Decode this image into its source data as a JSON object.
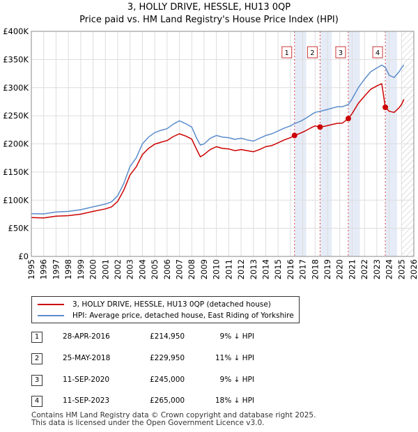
{
  "title_line1": "3, HOLLY DRIVE, HESSLE, HU13 0QP",
  "title_line2": "Price paid vs. HM Land Registry's House Price Index (HPI)",
  "chart_data": {
    "type": "line",
    "ylim": [
      0,
      400000
    ],
    "xlim": [
      1995,
      2026
    ],
    "y_ticks": [
      {
        "value": 0,
        "label": "£0"
      },
      {
        "value": 50000,
        "label": "£50K"
      },
      {
        "value": 100000,
        "label": "£100K"
      },
      {
        "value": 150000,
        "label": "£150K"
      },
      {
        "value": 200000,
        "label": "£200K"
      },
      {
        "value": 250000,
        "label": "£250K"
      },
      {
        "value": 300000,
        "label": "£300K"
      },
      {
        "value": 350000,
        "label": "£350K"
      },
      {
        "value": 400000,
        "label": "£400K"
      }
    ],
    "x_ticks": [
      "1995",
      "1996",
      "1997",
      "1998",
      "1999",
      "2000",
      "2001",
      "2002",
      "2003",
      "2004",
      "2005",
      "2006",
      "2007",
      "2008",
      "2009",
      "2010",
      "2011",
      "2012",
      "2013",
      "2014",
      "2015",
      "2016",
      "2017",
      "2018",
      "2019",
      "2020",
      "2021",
      "2022",
      "2023",
      "2024",
      "2025",
      "2026"
    ],
    "grid": true,
    "hatched_region_from": 2025.0,
    "series": [
      {
        "name": "HPI: Average price, detached house, East Riding of Yorkshire",
        "color": "#5b8ccc",
        "points": [
          [
            1995.0,
            76000
          ],
          [
            1996.0,
            75500
          ],
          [
            1997.0,
            79000
          ],
          [
            1998.0,
            80000
          ],
          [
            1999.0,
            83000
          ],
          [
            2000.0,
            88000
          ],
          [
            2001.0,
            93000
          ],
          [
            2001.5,
            97000
          ],
          [
            2002.0,
            108000
          ],
          [
            2002.5,
            130000
          ],
          [
            2003.0,
            160000
          ],
          [
            2003.5,
            175000
          ],
          [
            2004.0,
            200000
          ],
          [
            2004.5,
            212000
          ],
          [
            2005.0,
            220000
          ],
          [
            2005.5,
            224000
          ],
          [
            2006.0,
            227000
          ],
          [
            2006.5,
            235000
          ],
          [
            2007.0,
            241000
          ],
          [
            2007.5,
            236000
          ],
          [
            2008.0,
            230000
          ],
          [
            2008.4,
            210000
          ],
          [
            2008.7,
            198000
          ],
          [
            2009.0,
            200000
          ],
          [
            2009.5,
            210000
          ],
          [
            2010.0,
            215000
          ],
          [
            2010.5,
            212000
          ],
          [
            2011.0,
            211000
          ],
          [
            2011.5,
            208000
          ],
          [
            2012.0,
            210000
          ],
          [
            2012.5,
            207000
          ],
          [
            2013.0,
            205000
          ],
          [
            2013.5,
            210000
          ],
          [
            2014.0,
            215000
          ],
          [
            2014.5,
            218000
          ],
          [
            2015.0,
            223000
          ],
          [
            2015.5,
            228000
          ],
          [
            2016.0,
            232000
          ],
          [
            2016.33,
            236000
          ],
          [
            2016.8,
            240000
          ],
          [
            2017.2,
            245000
          ],
          [
            2017.7,
            252000
          ],
          [
            2018.0,
            256000
          ],
          [
            2018.4,
            258000
          ],
          [
            2018.8,
            260000
          ],
          [
            2019.3,
            263000
          ],
          [
            2019.8,
            266000
          ],
          [
            2020.2,
            266000
          ],
          [
            2020.69,
            270000
          ],
          [
            2021.0,
            280000
          ],
          [
            2021.5,
            300000
          ],
          [
            2022.0,
            315000
          ],
          [
            2022.5,
            328000
          ],
          [
            2023.0,
            335000
          ],
          [
            2023.4,
            340000
          ],
          [
            2023.69,
            336000
          ],
          [
            2024.0,
            322000
          ],
          [
            2024.4,
            318000
          ],
          [
            2024.8,
            328000
          ],
          [
            2025.0,
            335000
          ],
          [
            2025.2,
            340000
          ]
        ]
      },
      {
        "name": "3, HOLLY DRIVE, HESSLE, HU13 0QP (detached house)",
        "color": "#cc0000",
        "points": [
          [
            1995.0,
            69000
          ],
          [
            1996.0,
            68500
          ],
          [
            1997.0,
            71500
          ],
          [
            1998.0,
            72500
          ],
          [
            1999.0,
            75000
          ],
          [
            2000.0,
            80000
          ],
          [
            2001.0,
            84500
          ],
          [
            2001.5,
            88000
          ],
          [
            2002.0,
            98000
          ],
          [
            2002.5,
            118000
          ],
          [
            2003.0,
            145000
          ],
          [
            2003.5,
            159000
          ],
          [
            2004.0,
            181000
          ],
          [
            2004.5,
            192000
          ],
          [
            2005.0,
            199500
          ],
          [
            2005.5,
            203000
          ],
          [
            2006.0,
            206000
          ],
          [
            2006.5,
            213000
          ],
          [
            2007.0,
            218000
          ],
          [
            2007.5,
            214000
          ],
          [
            2008.0,
            208500
          ],
          [
            2008.4,
            190000
          ],
          [
            2008.7,
            177000
          ],
          [
            2009.0,
            181000
          ],
          [
            2009.5,
            190000
          ],
          [
            2010.0,
            195000
          ],
          [
            2010.5,
            192000
          ],
          [
            2011.0,
            191000
          ],
          [
            2011.5,
            188000
          ],
          [
            2012.0,
            190000
          ],
          [
            2012.5,
            188000
          ],
          [
            2013.0,
            186000
          ],
          [
            2013.5,
            190000
          ],
          [
            2014.0,
            195000
          ],
          [
            2014.5,
            197000
          ],
          [
            2015.0,
            202000
          ],
          [
            2015.5,
            207000
          ],
          [
            2016.0,
            211000
          ],
          [
            2016.33,
            214950
          ],
          [
            2016.8,
            219000
          ],
          [
            2017.2,
            223000
          ],
          [
            2017.7,
            229000
          ],
          [
            2018.0,
            232000
          ],
          [
            2018.4,
            229950
          ],
          [
            2018.8,
            231500
          ],
          [
            2019.3,
            234000
          ],
          [
            2019.8,
            236500
          ],
          [
            2020.2,
            236800
          ],
          [
            2020.69,
            245000
          ],
          [
            2021.0,
            254000
          ],
          [
            2021.5,
            272000
          ],
          [
            2022.0,
            285000
          ],
          [
            2022.5,
            297000
          ],
          [
            2023.0,
            303000
          ],
          [
            2023.4,
            307000
          ],
          [
            2023.69,
            265000
          ],
          [
            2024.0,
            258000
          ],
          [
            2024.4,
            256000
          ],
          [
            2024.8,
            264000
          ],
          [
            2025.0,
            270000
          ],
          [
            2025.2,
            279000
          ]
        ]
      }
    ],
    "sales": [
      {
        "n": "1",
        "label": "1",
        "date": "28-APR-2016",
        "year": 2016.33,
        "price": 214950,
        "price_label": "£214,950",
        "hpi": "9% ↓ HPI"
      },
      {
        "n": "2",
        "label": "2",
        "date": "25-MAY-2018",
        "year": 2018.4,
        "price": 229950,
        "price_label": "£229,950",
        "hpi": "11% ↓ HPI"
      },
      {
        "n": "3",
        "label": "3",
        "date": "11-SEP-2020",
        "year": 2020.69,
        "price": 245000,
        "price_label": "£245,000",
        "hpi": "9% ↓ HPI"
      },
      {
        "n": "4",
        "label": "4",
        "date": "11-SEP-2023",
        "year": 2023.69,
        "price": 265000,
        "price_label": "£265,000",
        "hpi": "18% ↓ HPI"
      }
    ]
  },
  "legend": {
    "property_label": "3, HOLLY DRIVE, HESSLE, HU13 0QP (detached house)",
    "hpi_label": "HPI: Average price, detached house, East Riding of Yorkshire"
  },
  "footer_line1": "Contains HM Land Registry data © Crown copyright and database right 2025.",
  "footer_line2": "This data is licensed under the Open Government Licence v3.0."
}
